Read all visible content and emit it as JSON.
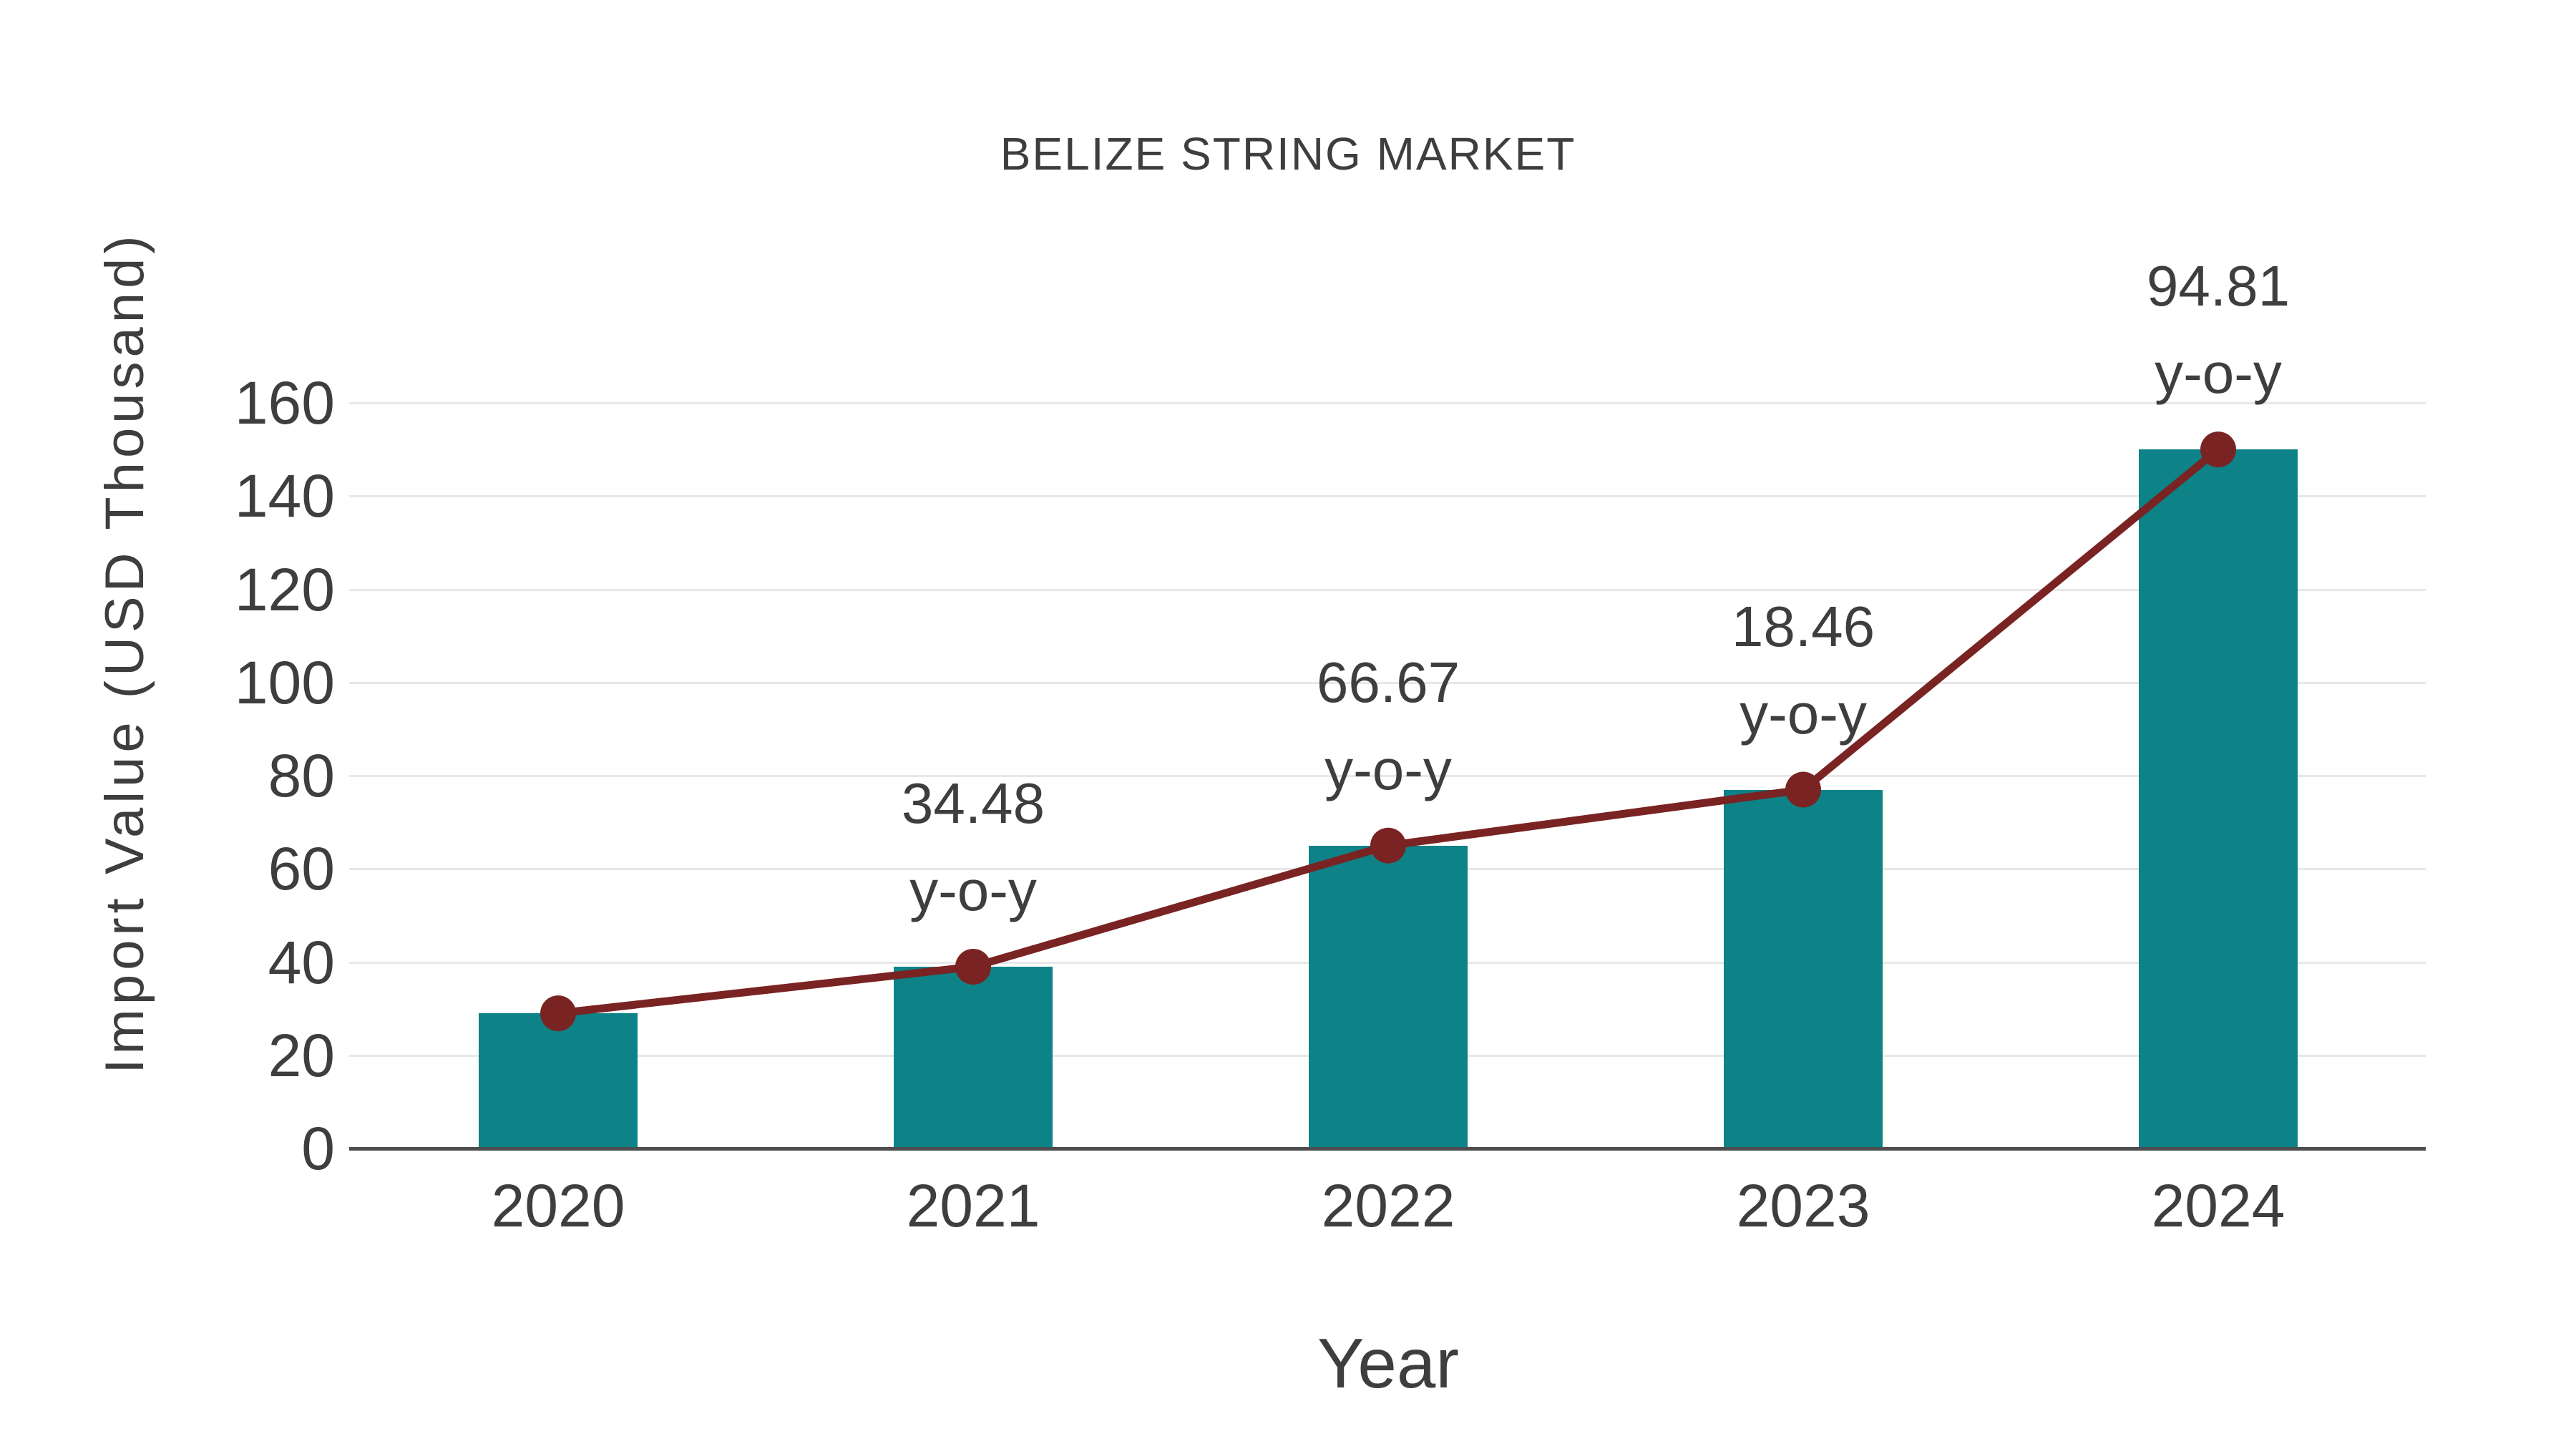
{
  "chart_data": {
    "type": "bar",
    "title": "BELIZE STRING MARKET",
    "xlabel": "Year",
    "ylabel": "Import Value (USD Thousand)",
    "categories": [
      "2020",
      "2021",
      "2022",
      "2023",
      "2024"
    ],
    "series": [
      {
        "name": "import-value-bars",
        "type": "bar",
        "values": [
          29,
          39,
          65,
          77,
          150
        ]
      },
      {
        "name": "import-value-trend",
        "type": "line",
        "values": [
          29,
          39,
          65,
          77,
          150
        ]
      }
    ],
    "annotations": [
      {
        "category": "2021",
        "value_label": "34.48",
        "suffix_label": "y-o-y"
      },
      {
        "category": "2022",
        "value_label": "66.67",
        "suffix_label": "y-o-y"
      },
      {
        "category": "2023",
        "value_label": "18.46",
        "suffix_label": "y-o-y"
      },
      {
        "category": "2024",
        "value_label": "94.81",
        "suffix_label": "y-o-y"
      }
    ],
    "ylim": [
      0,
      160
    ],
    "yticks": [
      0,
      20,
      40,
      60,
      80,
      100,
      120,
      140,
      160
    ],
    "grid": true,
    "legend": false,
    "colors": {
      "bar": "#0d8287",
      "line": "#7a2323",
      "text": "#3e3e3e",
      "grid": "#e8e8e8",
      "axis": "#4d4d4d"
    }
  }
}
